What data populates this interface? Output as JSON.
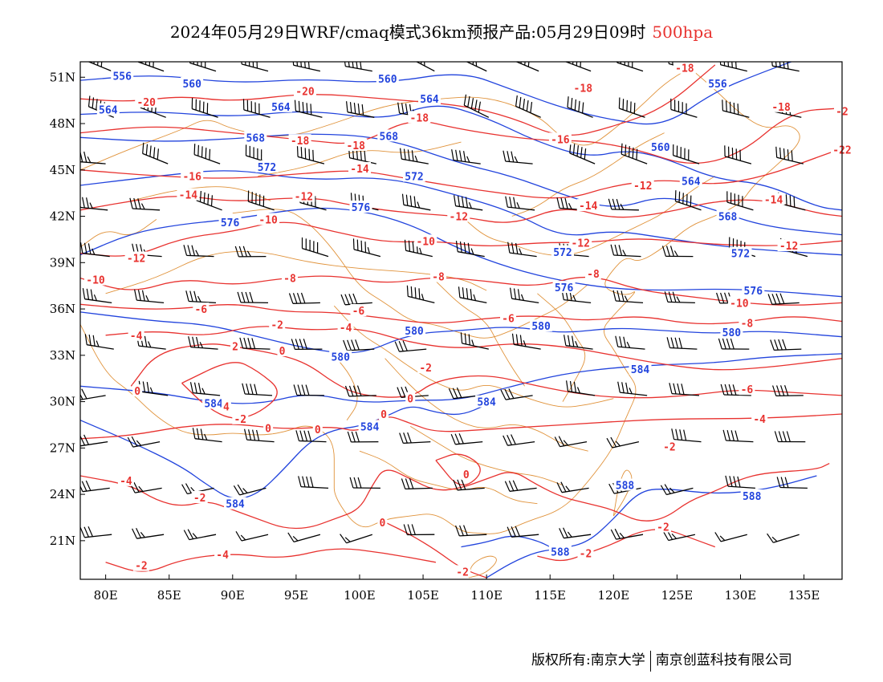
{
  "title": {
    "main": "2024年05月29日WRF/cmaq模式36km预报产品:05月29日09时",
    "level": "500hpa"
  },
  "footer": {
    "copyright": "版权所有:南京大学",
    "company": "南京创蓝科技有限公司"
  },
  "colors": {
    "height_contour": "#2244dd",
    "temp_contour": "#e8322f",
    "border": "#e0923a",
    "wind": "#000000"
  },
  "axes": {
    "lon_range": [
      78,
      138
    ],
    "lat_range": [
      18.5,
      52
    ],
    "x_ticks": [
      "80E",
      "85E",
      "90E",
      "95E",
      "100E",
      "105E",
      "110E",
      "115E",
      "120E",
      "125E",
      "130E",
      "135E"
    ],
    "y_ticks": [
      "51N",
      "48N",
      "45N",
      "42N",
      "39N",
      "36N",
      "33N",
      "30N",
      "27N",
      "24N",
      "21N"
    ]
  },
  "height_labels": [
    {
      "text": "556",
      "lon": 81.3,
      "lat": 51.1
    },
    {
      "text": "560",
      "lon": 86.8,
      "lat": 50.6
    },
    {
      "text": "560",
      "lon": 102.2,
      "lat": 50.9
    },
    {
      "text": "556",
      "lon": 128.2,
      "lat": 50.6
    },
    {
      "text": "564",
      "lon": 80.2,
      "lat": 48.9
    },
    {
      "text": "564",
      "lon": 93.8,
      "lat": 49.1
    },
    {
      "text": "564",
      "lon": 105.5,
      "lat": 49.6
    },
    {
      "text": "568",
      "lon": 91.8,
      "lat": 47.1
    },
    {
      "text": "568",
      "lon": 102.3,
      "lat": 47.2
    },
    {
      "text": "560",
      "lon": 123.7,
      "lat": 46.5
    },
    {
      "text": "572",
      "lon": 92.7,
      "lat": 45.2
    },
    {
      "text": "572",
      "lon": 104.3,
      "lat": 44.6
    },
    {
      "text": "564",
      "lon": 126.1,
      "lat": 44.3
    },
    {
      "text": "576",
      "lon": 89.8,
      "lat": 41.6
    },
    {
      "text": "576",
      "lon": 100.1,
      "lat": 42.6
    },
    {
      "text": "568",
      "lon": 129.0,
      "lat": 42.0
    },
    {
      "text": "572",
      "lon": 116.0,
      "lat": 39.7
    },
    {
      "text": "572",
      "lon": 130.0,
      "lat": 39.6
    },
    {
      "text": "576",
      "lon": 116.1,
      "lat": 37.4
    },
    {
      "text": "576",
      "lon": 131.0,
      "lat": 37.2
    },
    {
      "text": "580",
      "lon": 104.3,
      "lat": 34.6
    },
    {
      "text": "580",
      "lon": 114.3,
      "lat": 34.9
    },
    {
      "text": "580",
      "lon": 129.3,
      "lat": 34.5
    },
    {
      "text": "580",
      "lon": 98.5,
      "lat": 32.9
    },
    {
      "text": "584",
      "lon": 122.1,
      "lat": 32.1
    },
    {
      "text": "584",
      "lon": 88.5,
      "lat": 29.9
    },
    {
      "text": "584",
      "lon": 110.0,
      "lat": 30.0
    },
    {
      "text": "584",
      "lon": 100.8,
      "lat": 28.4
    },
    {
      "text": "584",
      "lon": 90.2,
      "lat": 23.4
    },
    {
      "text": "588",
      "lon": 120.9,
      "lat": 24.6
    },
    {
      "text": "588",
      "lon": 130.9,
      "lat": 23.9
    },
    {
      "text": "588",
      "lon": 115.8,
      "lat": 20.3
    }
  ],
  "temp_labels": [
    {
      "text": "-18",
      "lon": 125.6,
      "lat": 51.6
    },
    {
      "text": "-20",
      "lon": 83.2,
      "lat": 49.4
    },
    {
      "text": "-20",
      "lon": 95.7,
      "lat": 50.1
    },
    {
      "text": "-18",
      "lon": 117.6,
      "lat": 50.3
    },
    {
      "text": "-18",
      "lon": 133.2,
      "lat": 49.1
    },
    {
      "text": "-18",
      "lon": 104.7,
      "lat": 48.4
    },
    {
      "text": "-2",
      "lon": 138.0,
      "lat": 48.8
    },
    {
      "text": "-18",
      "lon": 95.3,
      "lat": 46.9
    },
    {
      "text": "-18",
      "lon": 99.7,
      "lat": 46.6
    },
    {
      "text": "-16",
      "lon": 115.8,
      "lat": 47.0
    },
    {
      "text": "-22",
      "lon": 138.0,
      "lat": 46.3
    },
    {
      "text": "-16",
      "lon": 86.8,
      "lat": 44.6
    },
    {
      "text": "-14",
      "lon": 100.0,
      "lat": 45.1
    },
    {
      "text": "-14",
      "lon": 86.5,
      "lat": 43.4
    },
    {
      "text": "-12",
      "lon": 95.6,
      "lat": 43.3
    },
    {
      "text": "-12",
      "lon": 122.3,
      "lat": 44.0
    },
    {
      "text": "-14",
      "lon": 118.0,
      "lat": 42.7
    },
    {
      "text": "-14",
      "lon": 132.6,
      "lat": 43.1
    },
    {
      "text": "-10",
      "lon": 92.8,
      "lat": 41.8
    },
    {
      "text": "-12",
      "lon": 107.8,
      "lat": 42.0
    },
    {
      "text": "-10",
      "lon": 105.2,
      "lat": 40.4
    },
    {
      "text": "-12",
      "lon": 117.4,
      "lat": 40.3
    },
    {
      "text": "-12",
      "lon": 133.8,
      "lat": 40.1
    },
    {
      "text": "-12",
      "lon": 82.4,
      "lat": 39.3
    },
    {
      "text": "-8",
      "lon": 118.4,
      "lat": 38.3
    },
    {
      "text": "-10",
      "lon": 79.2,
      "lat": 37.9
    },
    {
      "text": "-8",
      "lon": 94.5,
      "lat": 38.0
    },
    {
      "text": "-8",
      "lon": 106.2,
      "lat": 38.1
    },
    {
      "text": "-10",
      "lon": 129.9,
      "lat": 36.4
    },
    {
      "text": "-6",
      "lon": 87.5,
      "lat": 36.0
    },
    {
      "text": "-6",
      "lon": 99.9,
      "lat": 35.9
    },
    {
      "text": "-6",
      "lon": 111.7,
      "lat": 35.4
    },
    {
      "text": "-8",
      "lon": 130.5,
      "lat": 35.1
    },
    {
      "text": "-2",
      "lon": 93.5,
      "lat": 35.0
    },
    {
      "text": "-4",
      "lon": 98.9,
      "lat": 34.8
    },
    {
      "text": "-4",
      "lon": 82.4,
      "lat": 34.3
    },
    {
      "text": "2",
      "lon": 90.2,
      "lat": 33.6
    },
    {
      "text": "0",
      "lon": 93.9,
      "lat": 33.3
    },
    {
      "text": "-2",
      "lon": 105.2,
      "lat": 32.2
    },
    {
      "text": "-6",
      "lon": 130.5,
      "lat": 30.8
    },
    {
      "text": "0",
      "lon": 82.5,
      "lat": 30.7
    },
    {
      "text": "0",
      "lon": 104.0,
      "lat": 30.2
    },
    {
      "text": "4",
      "lon": 89.5,
      "lat": 29.7
    },
    {
      "text": "0",
      "lon": 101.9,
      "lat": 29.2
    },
    {
      "text": "-4",
      "lon": 131.5,
      "lat": 28.9
    },
    {
      "text": "-2",
      "lon": 90.6,
      "lat": 28.9
    },
    {
      "text": "0",
      "lon": 92.8,
      "lat": 28.3
    },
    {
      "text": "0",
      "lon": 96.7,
      "lat": 28.2
    },
    {
      "text": "-2",
      "lon": 124.4,
      "lat": 27.1
    },
    {
      "text": "0",
      "lon": 108.4,
      "lat": 25.3
    },
    {
      "text": "-4",
      "lon": 81.6,
      "lat": 24.9
    },
    {
      "text": "-2",
      "lon": 87.4,
      "lat": 23.8
    },
    {
      "text": "0",
      "lon": 101.8,
      "lat": 22.2
    },
    {
      "text": "-2",
      "lon": 123.9,
      "lat": 21.9
    },
    {
      "text": "-4",
      "lon": 89.2,
      "lat": 20.1
    },
    {
      "text": "-2",
      "lon": 117.8,
      "lat": 20.2
    },
    {
      "text": "-2",
      "lon": 82.8,
      "lat": 19.4
    },
    {
      "text": "-2",
      "lon": 108.1,
      "lat": 19.0
    }
  ]
}
